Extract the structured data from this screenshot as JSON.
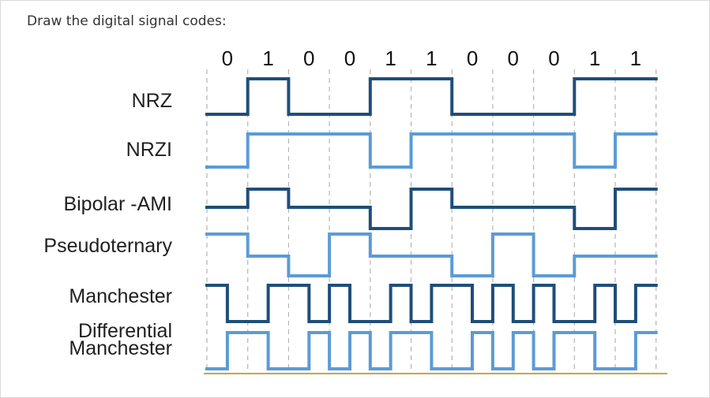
{
  "instruction": "Draw the digital signal codes:",
  "colors": {
    "dark": "#1f4e79",
    "light": "#5b9bd5",
    "grid": "#b5b5b5",
    "baseline": "#c9a63f"
  },
  "bits": [
    "0",
    "1",
    "0",
    "0",
    "1",
    "1",
    "0",
    "0",
    "0",
    "1",
    "1"
  ],
  "signals": [
    {
      "key": "nrz",
      "label_lines": [
        "NRZ"
      ],
      "color": "dark",
      "levels": [
        0,
        1,
        0,
        0,
        1,
        1,
        0,
        0,
        0,
        1,
        1
      ]
    },
    {
      "key": "nrzi",
      "label_lines": [
        "NRZI"
      ],
      "color": "light",
      "levels": [
        0,
        1,
        1,
        1,
        0,
        1,
        1,
        1,
        1,
        0,
        1
      ]
    },
    {
      "key": "bipolar_ami",
      "label_lines": [
        "Bipolar -AMI"
      ],
      "color": "dark",
      "levels": [
        0,
        1,
        0,
        0,
        -1,
        1,
        0,
        0,
        0,
        -1,
        1
      ]
    },
    {
      "key": "pseudoternary",
      "label_lines": [
        "Pseudoternary"
      ],
      "color": "light",
      "levels": [
        1,
        0,
        -1,
        1,
        0,
        0,
        -1,
        1,
        -1,
        0,
        0
      ]
    },
    {
      "key": "manchester",
      "label_lines": [
        "Manchester"
      ],
      "color": "dark",
      "halves": [
        1,
        0,
        0,
        1,
        1,
        0,
        1,
        0,
        0,
        1,
        0,
        1,
        1,
        0,
        1,
        0,
        1,
        0,
        0,
        1,
        0,
        1
      ]
    },
    {
      "key": "differential_manchester",
      "label_lines": [
        "Differential",
        "Manchester"
      ],
      "color": "light",
      "halves": [
        0,
        1,
        1,
        0,
        0,
        1,
        0,
        1,
        0,
        1,
        1,
        0,
        0,
        1,
        0,
        1,
        0,
        1,
        1,
        0,
        0,
        1
      ]
    }
  ]
}
